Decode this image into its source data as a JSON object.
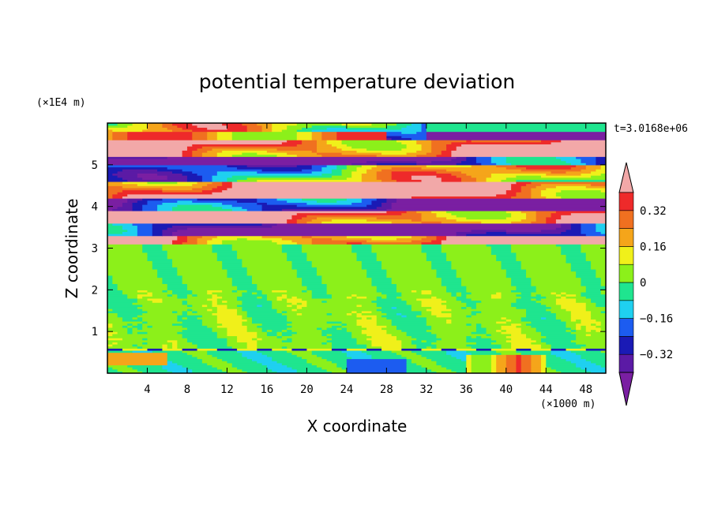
{
  "chart_data": {
    "type": "heatmap",
    "title": "potential temperature deviation",
    "xlabel": "X coordinate",
    "ylabel": "Z coordinate",
    "x_unit": "(×1000 m)",
    "y_unit": "(×1E4 m)",
    "time_label": "t=3.0168e+06",
    "xlim": [
      0,
      50
    ],
    "ylim": [
      0,
      6
    ],
    "x_ticks": [
      4,
      8,
      12,
      16,
      20,
      24,
      28,
      32,
      36,
      40,
      44,
      48
    ],
    "y_ticks": [
      1,
      2,
      3,
      4,
      5
    ],
    "colorbar": {
      "levels": [
        -0.4,
        -0.32,
        -0.24,
        -0.16,
        -0.08,
        0,
        0.08,
        0.16,
        0.24,
        0.32,
        0.4
      ],
      "labels": [
        "0.32",
        "0.16",
        "0",
        "−0.16",
        "−0.32"
      ],
      "label_values": [
        0.32,
        0.16,
        0,
        -0.16,
        -0.32
      ],
      "colors_low_to_high": [
        "#7a1fa2",
        "#5b1aa5",
        "#1a1ab5",
        "#1c5cf0",
        "#1fd0f0",
        "#1fe58f",
        "#8cf01a",
        "#f0f01a",
        "#f5a51a",
        "#f07020",
        "#ee2a2a",
        "#f2a8a8"
      ],
      "extend": "both"
    },
    "field_description_bands": [
      {
        "z_range": [
          5.6,
          6.0
        ],
        "dominant": 0.0
      },
      {
        "z_range": [
          5.2,
          5.6
        ],
        "dominant": 0.42
      },
      {
        "z_range": [
          5.0,
          5.2
        ],
        "dominant": -0.42
      },
      {
        "z_range": [
          4.6,
          5.0
        ],
        "dominant": 0.0
      },
      {
        "z_range": [
          4.2,
          4.6
        ],
        "dominant": 0.42
      },
      {
        "z_range": [
          3.9,
          4.2
        ],
        "dominant": -0.42
      },
      {
        "z_range": [
          3.6,
          3.9
        ],
        "dominant": 0.42
      },
      {
        "z_range": [
          3.3,
          3.6
        ],
        "dominant": -0.42
      },
      {
        "z_range": [
          3.1,
          3.3
        ],
        "dominant": 0.42
      },
      {
        "z_range": [
          0.6,
          3.1
        ],
        "dominant": 0.02
      },
      {
        "z_range": [
          0.0,
          0.6
        ],
        "dominant": -0.05
      }
    ]
  }
}
